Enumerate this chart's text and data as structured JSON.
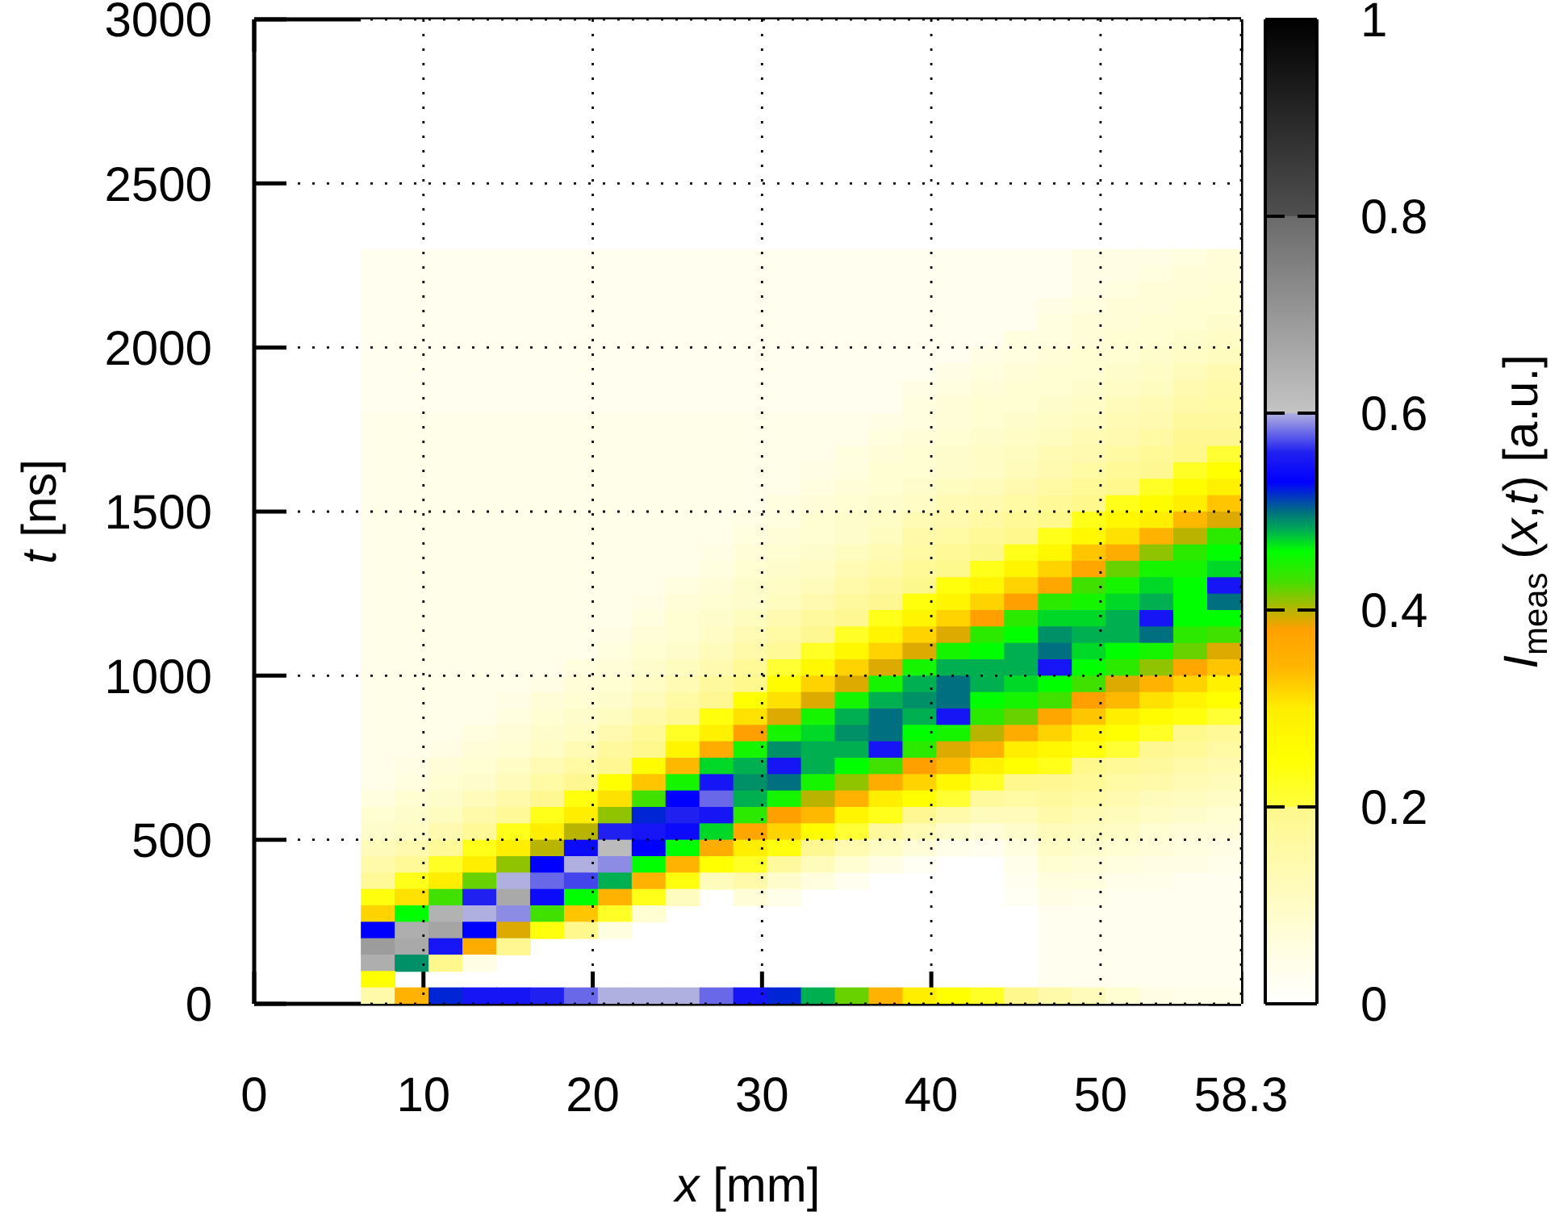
{
  "chart_data": {
    "type": "heatmap",
    "xlabel": "x [mm]",
    "ylabel": "t [ns]",
    "clabel": "I$_{meas}$ (x,t) [a.u.]",
    "x": [
      7.3,
      9.3,
      11.3,
      13.3,
      15.3,
      17.3,
      19.3,
      21.3,
      23.3,
      25.3,
      27.3,
      29.3,
      31.3,
      33.3,
      35.3,
      37.3,
      39.3,
      41.3,
      43.3,
      45.3,
      47.3,
      49.3,
      51.3,
      53.3,
      55.3,
      57.3
    ],
    "xlim": [
      0,
      58.3
    ],
    "xticks": [
      0,
      10,
      20,
      30,
      40,
      50,
      58.3
    ],
    "ylim": [
      0,
      3000
    ],
    "yticks": [
      0,
      500,
      1000,
      1500,
      2000,
      2500,
      3000
    ],
    "clim": [
      0,
      1
    ],
    "cticks": [
      0,
      0.2,
      0.4,
      0.6,
      0.8,
      1
    ],
    "grid": true,
    "cells": [
      [
        0,
        0,
        0,
        0,
        0,
        0,
        0,
        0,
        0,
        0,
        0,
        0,
        0,
        0,
        0,
        0,
        0,
        0,
        0,
        0,
        0,
        0,
        0,
        0,
        0,
        0
      ],
      [
        0,
        0,
        0,
        0,
        0,
        0,
        0,
        0,
        0,
        0,
        0,
        0,
        0,
        0,
        0,
        0,
        0,
        0,
        0,
        0,
        0,
        0,
        0,
        0,
        0,
        0
      ],
      [
        0,
        0,
        0,
        0,
        0,
        0,
        0,
        0,
        0,
        0,
        0,
        0,
        0,
        0,
        0,
        0,
        0,
        0,
        0,
        0,
        0,
        0,
        0,
        0,
        0,
        0
      ],
      [
        0,
        0,
        0,
        0,
        0,
        0,
        0,
        0,
        0,
        0,
        0,
        0,
        0,
        0,
        0,
        0,
        0,
        0,
        0,
        0,
        0,
        0,
        0,
        0,
        0,
        0
      ],
      [
        0,
        0,
        0,
        0,
        0,
        0,
        0,
        0,
        0,
        0,
        0,
        0,
        0,
        0,
        0,
        0,
        0,
        0,
        0,
        0,
        0,
        0,
        0,
        0,
        0,
        0
      ],
      [
        0,
        0,
        0,
        0,
        0,
        0,
        0,
        0,
        0,
        0,
        0,
        0,
        0,
        0,
        0,
        0,
        0,
        0,
        0,
        0,
        0,
        0,
        0,
        0,
        0,
        0
      ],
      [
        0,
        0,
        0,
        0,
        0,
        0,
        0,
        0,
        0,
        0,
        0,
        0,
        0,
        0,
        0,
        0,
        0,
        0,
        0,
        0,
        0,
        0,
        0,
        0,
        0,
        0
      ],
      [
        0,
        0,
        0,
        0,
        0,
        0,
        0,
        0,
        0,
        0,
        0,
        0,
        0,
        0,
        0,
        0,
        0,
        0,
        0,
        0,
        0,
        0,
        0,
        0,
        0,
        0
      ],
      [
        0,
        0,
        0,
        0,
        0,
        0,
        0,
        0,
        0,
        0,
        0,
        0,
        0,
        0,
        0,
        0,
        0,
        0,
        0,
        0,
        0,
        0,
        0,
        0,
        0,
        0
      ],
      [
        0,
        0,
        0,
        0,
        0,
        0,
        0,
        0,
        0,
        0,
        0,
        0,
        0,
        0,
        0,
        0,
        0,
        0,
        0,
        0,
        0,
        0,
        0,
        0,
        0,
        0
      ],
      [
        0,
        0,
        0,
        0,
        0,
        0,
        0,
        0,
        0,
        0,
        0,
        0,
        0,
        0,
        0,
        0,
        0,
        0,
        0,
        0,
        0,
        0,
        0,
        0,
        0,
        0
      ],
      [
        0,
        0,
        0,
        0,
        0,
        0,
        0,
        0,
        0,
        0,
        0,
        0,
        0,
        0,
        0,
        0,
        0,
        0,
        0,
        0,
        0,
        0,
        0,
        0,
        0,
        0
      ],
      [
        0,
        0,
        0,
        0,
        0,
        0,
        0,
        0,
        0,
        0,
        0,
        0,
        0,
        0,
        0,
        0,
        0,
        0,
        0,
        0,
        0,
        0,
        0,
        0,
        0,
        0
      ],
      [
        0,
        0,
        0,
        0,
        0,
        0,
        0,
        0,
        0,
        0,
        0,
        0,
        0,
        0,
        0,
        0,
        0,
        0,
        0,
        0,
        0,
        0,
        0,
        0,
        0,
        0
      ],
      [
        0.03,
        0.03,
        0.03,
        0.03,
        0.03,
        0.03,
        0.03,
        0.03,
        0.03,
        0.03,
        0.03,
        0.03,
        0.03,
        0.03,
        0.03,
        0.03,
        0.03,
        0.03,
        0.03,
        0.03,
        0.03,
        0.05,
        0.05,
        0.05,
        0.06,
        0.07
      ],
      [
        0.03,
        0.03,
        0.03,
        0.03,
        0.03,
        0.03,
        0.03,
        0.03,
        0.03,
        0.03,
        0.03,
        0.03,
        0.03,
        0.03,
        0.03,
        0.03,
        0.03,
        0.03,
        0.03,
        0.03,
        0.03,
        0.05,
        0.05,
        0.06,
        0.07,
        0.07
      ],
      [
        0.03,
        0.03,
        0.03,
        0.03,
        0.03,
        0.03,
        0.03,
        0.03,
        0.03,
        0.03,
        0.03,
        0.03,
        0.03,
        0.03,
        0.03,
        0.03,
        0.03,
        0.03,
        0.03,
        0.03,
        0.03,
        0.05,
        0.06,
        0.07,
        0.07,
        0.08
      ],
      [
        0.03,
        0.03,
        0.03,
        0.03,
        0.03,
        0.03,
        0.03,
        0.03,
        0.03,
        0.03,
        0.03,
        0.03,
        0.03,
        0.03,
        0.03,
        0.03,
        0.03,
        0.03,
        0.03,
        0.03,
        0.05,
        0.06,
        0.07,
        0.07,
        0.08,
        0.08
      ],
      [
        0.03,
        0.03,
        0.03,
        0.03,
        0.03,
        0.03,
        0.03,
        0.03,
        0.03,
        0.03,
        0.03,
        0.03,
        0.03,
        0.03,
        0.03,
        0.03,
        0.03,
        0.03,
        0.03,
        0.03,
        0.06,
        0.07,
        0.07,
        0.08,
        0.08,
        0.09
      ],
      [
        0.03,
        0.03,
        0.03,
        0.03,
        0.03,
        0.03,
        0.03,
        0.03,
        0.03,
        0.03,
        0.03,
        0.03,
        0.03,
        0.03,
        0.03,
        0.03,
        0.03,
        0.03,
        0.03,
        0.06,
        0.06,
        0.07,
        0.08,
        0.08,
        0.09,
        0.1
      ],
      [
        0.03,
        0.03,
        0.03,
        0.03,
        0.03,
        0.03,
        0.03,
        0.03,
        0.03,
        0.03,
        0.03,
        0.03,
        0.03,
        0.03,
        0.03,
        0.03,
        0.03,
        0.03,
        0.05,
        0.06,
        0.07,
        0.08,
        0.08,
        0.09,
        0.1,
        0.11
      ],
      [
        0.03,
        0.03,
        0.03,
        0.03,
        0.03,
        0.03,
        0.03,
        0.03,
        0.03,
        0.03,
        0.03,
        0.03,
        0.03,
        0.03,
        0.03,
        0.03,
        0.03,
        0.05,
        0.06,
        0.07,
        0.08,
        0.08,
        0.09,
        0.1,
        0.12,
        0.14
      ],
      [
        0.03,
        0.03,
        0.03,
        0.03,
        0.03,
        0.03,
        0.03,
        0.03,
        0.03,
        0.03,
        0.03,
        0.03,
        0.03,
        0.03,
        0.03,
        0.03,
        0.05,
        0.06,
        0.07,
        0.08,
        0.08,
        0.09,
        0.1,
        0.11,
        0.14,
        0.15
      ],
      [
        0.03,
        0.03,
        0.03,
        0.03,
        0.03,
        0.03,
        0.03,
        0.03,
        0.03,
        0.03,
        0.03,
        0.03,
        0.03,
        0.03,
        0.03,
        0.03,
        0.06,
        0.07,
        0.08,
        0.08,
        0.09,
        0.1,
        0.12,
        0.13,
        0.15,
        0.16
      ],
      [
        0.04,
        0.04,
        0.04,
        0.04,
        0.04,
        0.04,
        0.04,
        0.04,
        0.04,
        0.04,
        0.04,
        0.04,
        0.04,
        0.04,
        0.04,
        0.05,
        0.06,
        0.07,
        0.08,
        0.09,
        0.1,
        0.11,
        0.13,
        0.14,
        0.17,
        0.17
      ],
      [
        0.04,
        0.04,
        0.04,
        0.04,
        0.04,
        0.04,
        0.04,
        0.04,
        0.04,
        0.04,
        0.04,
        0.04,
        0.04,
        0.04,
        0.04,
        0.06,
        0.07,
        0.08,
        0.09,
        0.1,
        0.11,
        0.13,
        0.14,
        0.16,
        0.19,
        0.19
      ],
      [
        0.04,
        0.04,
        0.04,
        0.04,
        0.04,
        0.04,
        0.04,
        0.04,
        0.04,
        0.04,
        0.04,
        0.04,
        0.04,
        0.04,
        0.06,
        0.07,
        0.08,
        0.09,
        0.1,
        0.11,
        0.13,
        0.14,
        0.16,
        0.18,
        0.2,
        0.21
      ],
      [
        0.04,
        0.04,
        0.04,
        0.04,
        0.04,
        0.04,
        0.04,
        0.04,
        0.04,
        0.04,
        0.04,
        0.04,
        0.04,
        0.05,
        0.06,
        0.08,
        0.08,
        0.09,
        0.1,
        0.12,
        0.14,
        0.16,
        0.18,
        0.19,
        0.22,
        0.25
      ],
      [
        0.04,
        0.04,
        0.04,
        0.04,
        0.04,
        0.04,
        0.04,
        0.04,
        0.04,
        0.04,
        0.04,
        0.04,
        0.04,
        0.06,
        0.07,
        0.08,
        0.09,
        0.11,
        0.12,
        0.14,
        0.16,
        0.18,
        0.2,
        0.22,
        0.26,
        0.29
      ],
      [
        0.04,
        0.04,
        0.04,
        0.04,
        0.04,
        0.04,
        0.04,
        0.04,
        0.04,
        0.04,
        0.04,
        0.04,
        0.06,
        0.07,
        0.08,
        0.09,
        0.1,
        0.13,
        0.14,
        0.16,
        0.18,
        0.2,
        0.23,
        0.26,
        0.3,
        0.33
      ],
      [
        0.04,
        0.04,
        0.04,
        0.04,
        0.04,
        0.04,
        0.04,
        0.04,
        0.04,
        0.04,
        0.04,
        0.05,
        0.06,
        0.08,
        0.09,
        0.1,
        0.13,
        0.14,
        0.16,
        0.18,
        0.2,
        0.23,
        0.27,
        0.3,
        0.34,
        0.39
      ],
      [
        0.04,
        0.04,
        0.04,
        0.04,
        0.04,
        0.04,
        0.04,
        0.04,
        0.04,
        0.04,
        0.04,
        0.06,
        0.07,
        0.08,
        0.09,
        0.11,
        0.15,
        0.16,
        0.18,
        0.2,
        0.23,
        0.27,
        0.31,
        0.35,
        0.4,
        0.44
      ],
      [
        0.04,
        0.04,
        0.04,
        0.04,
        0.04,
        0.04,
        0.04,
        0.04,
        0.04,
        0.04,
        0.05,
        0.07,
        0.08,
        0.09,
        0.11,
        0.13,
        0.16,
        0.18,
        0.2,
        0.23,
        0.27,
        0.33,
        0.36,
        0.41,
        0.44,
        0.46
      ],
      [
        0.04,
        0.04,
        0.04,
        0.04,
        0.04,
        0.04,
        0.04,
        0.04,
        0.04,
        0.04,
        0.06,
        0.08,
        0.09,
        0.1,
        0.13,
        0.15,
        0.18,
        0.2,
        0.23,
        0.28,
        0.32,
        0.37,
        0.42,
        0.45,
        0.45,
        0.47
      ],
      [
        0.04,
        0.04,
        0.04,
        0.04,
        0.04,
        0.04,
        0.04,
        0.04,
        0.04,
        0.06,
        0.07,
        0.09,
        0.1,
        0.12,
        0.15,
        0.17,
        0.2,
        0.24,
        0.28,
        0.32,
        0.37,
        0.43,
        0.45,
        0.47,
        0.46,
        0.55
      ],
      [
        0.04,
        0.04,
        0.04,
        0.04,
        0.04,
        0.04,
        0.04,
        0.04,
        0.05,
        0.07,
        0.08,
        0.09,
        0.11,
        0.14,
        0.17,
        0.19,
        0.24,
        0.28,
        0.32,
        0.38,
        0.44,
        0.45,
        0.47,
        0.48,
        0.46,
        0.5
      ],
      [
        0.04,
        0.04,
        0.04,
        0.04,
        0.04,
        0.04,
        0.04,
        0.04,
        0.06,
        0.08,
        0.09,
        0.11,
        0.14,
        0.17,
        0.19,
        0.23,
        0.28,
        0.32,
        0.38,
        0.44,
        0.47,
        0.47,
        0.48,
        0.55,
        0.46,
        0.46
      ],
      [
        0.04,
        0.04,
        0.04,
        0.04,
        0.04,
        0.04,
        0.04,
        0.05,
        0.07,
        0.08,
        0.1,
        0.13,
        0.16,
        0.19,
        0.22,
        0.28,
        0.32,
        0.39,
        0.44,
        0.46,
        0.49,
        0.48,
        0.48,
        0.5,
        0.44,
        0.43
      ],
      [
        0.04,
        0.04,
        0.04,
        0.04,
        0.04,
        0.04,
        0.04,
        0.06,
        0.08,
        0.09,
        0.12,
        0.15,
        0.18,
        0.22,
        0.27,
        0.32,
        0.39,
        0.45,
        0.46,
        0.48,
        0.5,
        0.47,
        0.46,
        0.45,
        0.42,
        0.39
      ],
      [
        0.04,
        0.04,
        0.04,
        0.04,
        0.04,
        0.04,
        0.06,
        0.07,
        0.09,
        0.11,
        0.14,
        0.18,
        0.21,
        0.27,
        0.32,
        0.39,
        0.45,
        0.48,
        0.48,
        0.48,
        0.55,
        0.46,
        0.44,
        0.41,
        0.37,
        0.33
      ],
      [
        0.04,
        0.04,
        0.04,
        0.04,
        0.04,
        0.05,
        0.07,
        0.08,
        0.1,
        0.13,
        0.17,
        0.2,
        0.26,
        0.32,
        0.39,
        0.45,
        0.48,
        0.5,
        0.48,
        0.47,
        0.46,
        0.43,
        0.39,
        0.35,
        0.32,
        0.29
      ],
      [
        0.04,
        0.04,
        0.04,
        0.04,
        0.05,
        0.07,
        0.08,
        0.09,
        0.12,
        0.16,
        0.19,
        0.25,
        0.31,
        0.39,
        0.45,
        0.48,
        0.49,
        0.5,
        0.46,
        0.45,
        0.43,
        0.38,
        0.34,
        0.31,
        0.28,
        0.25
      ],
      [
        0.04,
        0.04,
        0.04,
        0.04,
        0.06,
        0.08,
        0.09,
        0.11,
        0.15,
        0.18,
        0.24,
        0.31,
        0.39,
        0.45,
        0.48,
        0.5,
        0.48,
        0.55,
        0.44,
        0.42,
        0.37,
        0.33,
        0.3,
        0.26,
        0.24,
        0.21
      ],
      [
        0.04,
        0.04,
        0.04,
        0.06,
        0.07,
        0.09,
        0.1,
        0.14,
        0.18,
        0.22,
        0.29,
        0.38,
        0.45,
        0.47,
        0.49,
        0.5,
        0.46,
        0.45,
        0.4,
        0.36,
        0.32,
        0.28,
        0.25,
        0.22,
        0.2,
        0.18
      ],
      [
        0.04,
        0.04,
        0.05,
        0.07,
        0.08,
        0.1,
        0.13,
        0.17,
        0.2,
        0.28,
        0.36,
        0.45,
        0.49,
        0.48,
        0.48,
        0.55,
        0.44,
        0.39,
        0.35,
        0.3,
        0.27,
        0.24,
        0.21,
        0.19,
        0.18,
        0.16
      ],
      [
        0.04,
        0.05,
        0.07,
        0.08,
        0.1,
        0.13,
        0.16,
        0.19,
        0.26,
        0.34,
        0.47,
        0.48,
        0.55,
        0.48,
        0.46,
        0.43,
        0.38,
        0.34,
        0.29,
        0.25,
        0.23,
        0.2,
        0.18,
        0.17,
        0.15,
        0.14
      ],
      [
        0.04,
        0.06,
        0.08,
        0.09,
        0.12,
        0.16,
        0.19,
        0.25,
        0.33,
        0.45,
        0.55,
        0.49,
        0.5,
        0.45,
        0.41,
        0.36,
        0.32,
        0.27,
        0.22,
        0.2,
        0.19,
        0.18,
        0.16,
        0.15,
        0.13,
        0.12
      ],
      [
        0.06,
        0.08,
        0.09,
        0.12,
        0.15,
        0.19,
        0.24,
        0.31,
        0.43,
        0.53,
        0.58,
        0.48,
        0.45,
        0.4,
        0.35,
        0.3,
        0.25,
        0.21,
        0.17,
        0.16,
        0.17,
        0.16,
        0.14,
        0.12,
        0.11,
        0.1
      ],
      [
        0.08,
        0.09,
        0.11,
        0.15,
        0.18,
        0.23,
        0.3,
        0.41,
        0.52,
        0.56,
        0.55,
        0.44,
        0.38,
        0.34,
        0.28,
        0.23,
        0.19,
        0.15,
        0.12,
        0.12,
        0.15,
        0.13,
        0.12,
        0.1,
        0.09,
        0.08
      ],
      [
        0.09,
        0.1,
        0.14,
        0.18,
        0.23,
        0.3,
        0.4,
        0.56,
        0.55,
        0.54,
        0.47,
        0.37,
        0.32,
        0.26,
        0.21,
        0.17,
        0.13,
        0.09,
        0.07,
        0.09,
        0.12,
        0.11,
        0.1,
        0.08,
        0.07,
        0.07
      ],
      [
        0.12,
        0.14,
        0.18,
        0.23,
        0.3,
        0.4,
        0.54,
        0.62,
        0.53,
        0.46,
        0.36,
        0.3,
        0.24,
        0.19,
        0.14,
        0.1,
        0.07,
        0.04,
        0.03,
        0.06,
        0.1,
        0.09,
        0.08,
        0.07,
        0.06,
        0.05
      ],
      [
        0.15,
        0.18,
        0.22,
        0.3,
        0.41,
        0.53,
        0.6,
        0.59,
        0.46,
        0.35,
        0.25,
        0.22,
        0.17,
        0.12,
        0.08,
        0.05,
        0.02,
        null,
        null,
        0.04,
        0.08,
        0.07,
        0.06,
        0.05,
        0.05,
        0.04
      ],
      [
        0.18,
        0.23,
        0.3,
        0.42,
        0.6,
        0.58,
        0.57,
        0.48,
        0.35,
        0.24,
        0.12,
        0.15,
        0.09,
        0.06,
        0.03,
        null,
        null,
        null,
        null,
        0.03,
        0.06,
        0.06,
        0.04,
        0.04,
        0.03,
        0.03
      ],
      [
        0.24,
        0.31,
        0.43,
        0.56,
        0.66,
        0.54,
        0.46,
        0.35,
        0.23,
        0.11,
        null,
        0.07,
        0.04,
        null,
        null,
        null,
        null,
        null,
        null,
        0.02,
        0.05,
        0.04,
        0.03,
        0.03,
        0.03,
        0.03
      ],
      [
        0.32,
        0.46,
        0.64,
        0.6,
        0.59,
        0.43,
        0.33,
        0.22,
        0.08,
        null,
        null,
        null,
        null,
        null,
        null,
        null,
        null,
        null,
        null,
        null,
        0.03,
        0.03,
        0.03,
        0.03,
        0.03,
        0.03
      ],
      [
        0.53,
        0.65,
        0.67,
        0.53,
        0.39,
        0.24,
        0.2,
        0.06,
        null,
        null,
        null,
        null,
        null,
        null,
        null,
        null,
        null,
        null,
        null,
        null,
        0.03,
        0.03,
        0.03,
        0.03,
        0.03,
        0.03
      ],
      [
        0.69,
        0.66,
        0.55,
        0.36,
        0.19,
        null,
        null,
        null,
        null,
        null,
        null,
        null,
        null,
        null,
        null,
        null,
        null,
        null,
        null,
        null,
        0.03,
        0.03,
        0.03,
        0.03,
        0.03,
        0.03
      ],
      [
        0.65,
        0.49,
        0.2,
        0.05,
        null,
        null,
        null,
        null,
        null,
        null,
        null,
        null,
        null,
        null,
        null,
        null,
        null,
        null,
        null,
        null,
        0.03,
        0.03,
        0.03,
        0.03,
        0.03,
        0.03
      ],
      [
        0.25,
        null,
        null,
        null,
        null,
        null,
        null,
        null,
        null,
        null,
        null,
        null,
        null,
        null,
        null,
        null,
        null,
        null,
        null,
        null,
        0.03,
        0.03,
        0.03,
        0.03,
        0.03,
        0.03
      ],
      [
        0.15,
        0.35,
        0.52,
        0.55,
        0.55,
        0.56,
        0.58,
        0.6,
        0.6,
        0.6,
        0.58,
        0.55,
        0.52,
        0.48,
        0.42,
        0.35,
        0.3,
        0.25,
        0.22,
        0.2,
        0.15,
        0.12,
        0.08,
        0.05,
        0.04,
        0.04
      ]
    ]
  }
}
